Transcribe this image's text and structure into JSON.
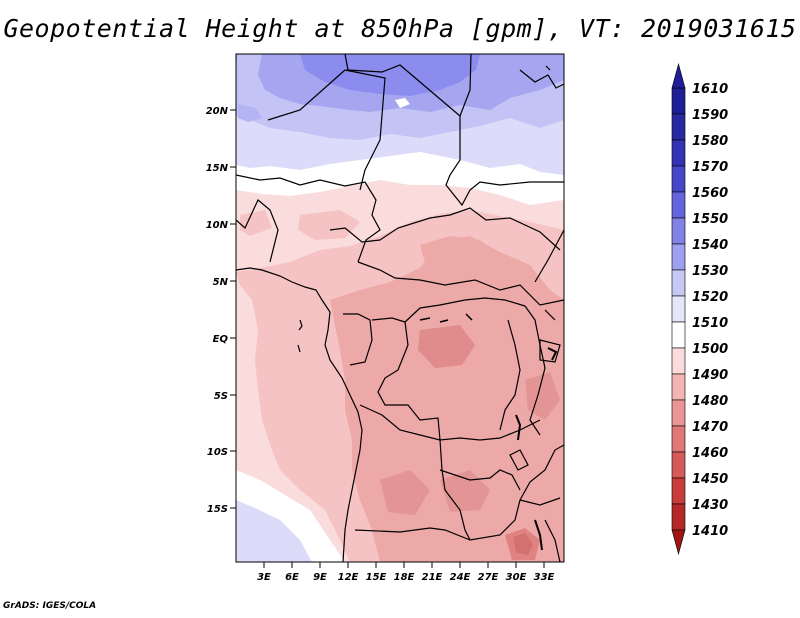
{
  "title": "Geopotential Height at 850hPa [gpm], VT: 2019031615",
  "footer": "GrADS: IGES/COLA",
  "map": {
    "lat_labels": [
      "20N",
      "15N",
      "10N",
      "5N",
      "EQ",
      "5S",
      "10S",
      "15S"
    ],
    "lon_labels": [
      "3E",
      "6E",
      "9E",
      "12E",
      "15E",
      "18E",
      "21E",
      "24E",
      "27E",
      "30E",
      "33E"
    ]
  },
  "colorbar": {
    "levels": [
      "1610",
      "1590",
      "1580",
      "1570",
      "1560",
      "1550",
      "1540",
      "1530",
      "1520",
      "1510",
      "1500",
      "1490",
      "1480",
      "1470",
      "1460",
      "1450",
      "1430",
      "1410"
    ],
    "colors": [
      "#c8c8f0",
      "#1e1e96",
      "#2828a0",
      "#3232b4",
      "#4646c8",
      "#6464dc",
      "#8282e6",
      "#a0a0f0",
      "#c8c8f5",
      "#e6e6fa",
      "#ffffff",
      "#fadcdc",
      "#f5b4b4",
      "#eb9696",
      "#e17878",
      "#d75a5a",
      "#c83c3c",
      "#b42828",
      "#a01414"
    ]
  },
  "colors": {
    "blue_high": "#8c8cee",
    "blue_mid": "#b4b4f5",
    "blue_light": "#dcdcfa",
    "pink_light": "#fadcdc",
    "pink_mid": "#f5c3c3",
    "pink_deep": "#eb9a9a",
    "pink_deeper": "#e08282"
  }
}
